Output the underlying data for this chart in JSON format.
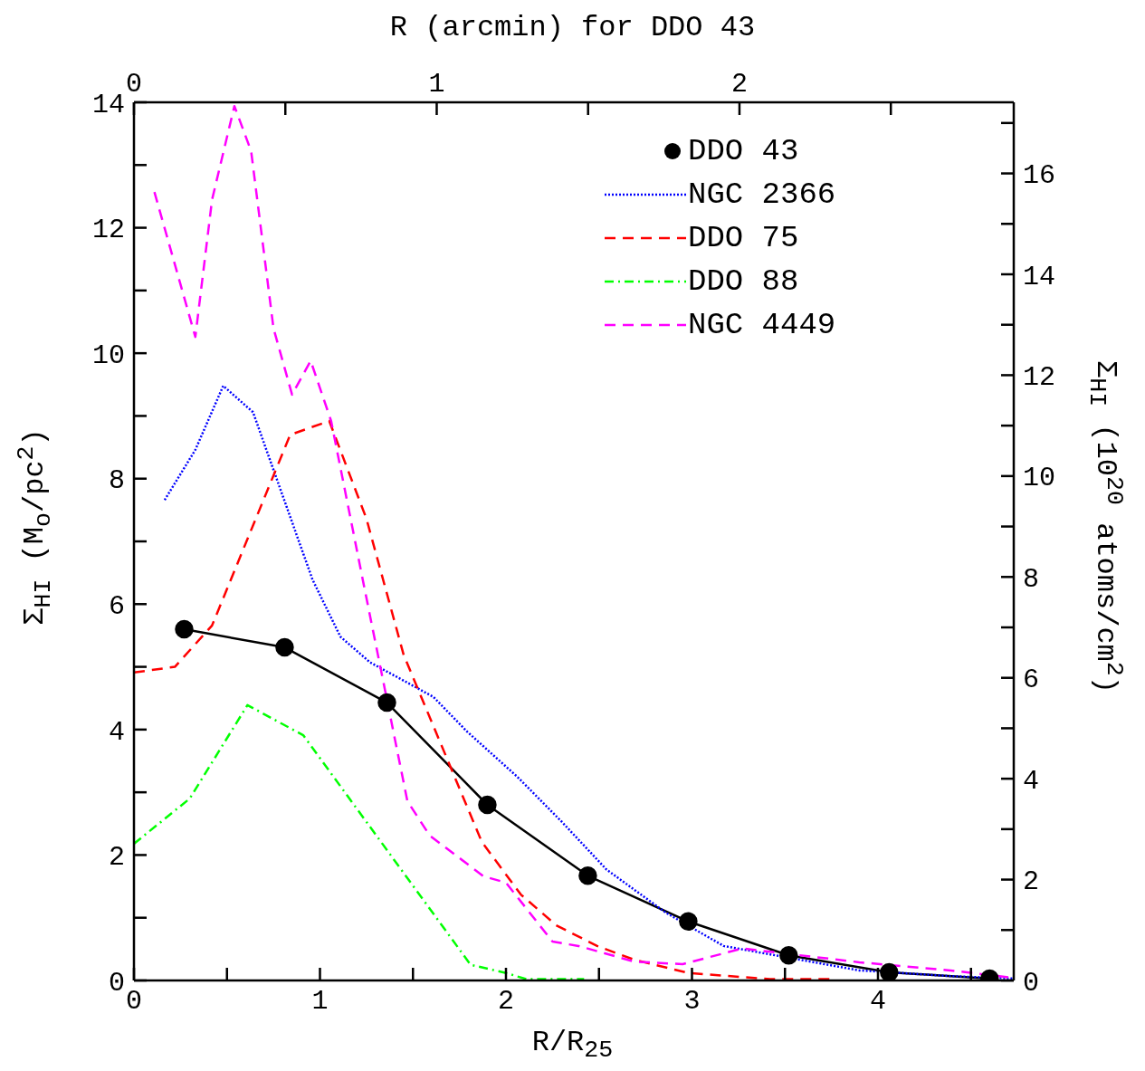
{
  "chart_data": {
    "type": "line",
    "xlabel": "R/R$_{25}$",
    "ylabel": "Σ$_{HI}$ (M$_{o}$/pc$^{2}$)",
    "y2label": "Σ$_{HI}$ (10$^{20}$ atoms/cm$^{2}$)",
    "x2label": "R (arcmin) for DDO 43",
    "xlim": [
      0,
      4.73
    ],
    "xticks": [
      0,
      {
        "value": 0.5,
        "label": null
      },
      1,
      {
        "value": 1.5,
        "label": null
      },
      2,
      {
        "value": 2.5,
        "label": null
      },
      3,
      {
        "value": 3.5,
        "label": null
      },
      4,
      {
        "value": 4.5,
        "label": null
      }
    ],
    "ylim": [
      0,
      14
    ],
    "yticks": [
      0,
      {
        "value": 1,
        "label": null
      },
      2,
      {
        "value": 3,
        "label": null
      },
      4,
      {
        "value": 5,
        "label": null
      },
      6,
      {
        "value": 7,
        "label": null
      },
      8,
      {
        "value": 9,
        "label": null
      },
      10,
      {
        "value": 11,
        "label": null
      },
      12,
      {
        "value": 13,
        "label": null
      },
      14
    ],
    "x2lim": [
      0,
      2.906
    ],
    "x2ticks": [
      0,
      {
        "value": 0.5,
        "label": null
      },
      1,
      {
        "value": 1.5,
        "label": null
      },
      2,
      {
        "value": 2.5,
        "label": null
      }
    ],
    "y2lim": [
      0,
      17.41
    ],
    "y2ticks": [
      0,
      {
        "value": 1,
        "label": null
      },
      2,
      {
        "value": 3,
        "label": null
      },
      4,
      {
        "value": 5,
        "label": null
      },
      6,
      {
        "value": 7,
        "label": null
      },
      8,
      {
        "value": 9,
        "label": null
      },
      10,
      {
        "value": 11,
        "label": null
      },
      12,
      {
        "value": 13,
        "label": null
      },
      14,
      {
        "value": 15,
        "label": null
      },
      16,
      {
        "value": 17,
        "label": null
      }
    ],
    "legend": "top right",
    "grid": false,
    "series": [
      {
        "name": "DDO 43",
        "color": "#000000",
        "marker": "circle",
        "line_style": "solid",
        "x": [
          0.27,
          0.81,
          1.36,
          1.9,
          2.44,
          2.98,
          3.52,
          4.06,
          4.6
        ],
        "values": [
          5.6,
          5.31,
          4.43,
          2.8,
          1.67,
          0.94,
          0.4,
          0.13,
          0.03
        ]
      },
      {
        "name": "NGC 2366",
        "color": "#0000ff",
        "marker": "none",
        "line_style": "dotted",
        "x": [
          0.165,
          0.33,
          0.48,
          0.64,
          0.96,
          1.11,
          1.27,
          1.45,
          1.61,
          1.79,
          2.06,
          2.3,
          2.54,
          2.86,
          3.17,
          3.9,
          4.39,
          4.73
        ],
        "values": [
          7.66,
          8.46,
          9.48,
          9.06,
          6.39,
          5.48,
          5.07,
          4.78,
          4.52,
          3.97,
          3.25,
          2.53,
          1.77,
          1.08,
          0.55,
          0.16,
          0.07,
          0.03
        ]
      },
      {
        "name": "DDO 75",
        "color": "#ff0000",
        "marker": "none",
        "line_style": "dashed",
        "x": [
          0,
          0.22,
          0.42,
          0.84,
          1.05,
          1.25,
          1.45,
          1.87,
          2.08,
          2.27,
          2.49,
          2.69,
          2.98,
          3.42,
          3.75
        ],
        "values": [
          4.91,
          5.0,
          5.66,
          8.7,
          8.92,
          7.36,
          5.19,
          2.21,
          1.37,
          0.88,
          0.55,
          0.33,
          0.12,
          0.02,
          0.02
        ]
      },
      {
        "name": "DDO 88",
        "color": "#00ff00",
        "marker": "none",
        "line_style": "dashdot",
        "x": [
          0,
          0.3,
          0.61,
          0.91,
          1.81,
          2.0,
          2.11,
          2.42
        ],
        "values": [
          2.18,
          2.9,
          4.39,
          3.91,
          0.25,
          0.12,
          0.02,
          0.02
        ]
      },
      {
        "name": "NGC 4449",
        "color": "#ff00ff",
        "marker": "none",
        "line_style": "dashed",
        "x": [
          0.11,
          0.33,
          0.42,
          0.54,
          0.63,
          0.75,
          0.85,
          0.95,
          1.06,
          1.23,
          1.47,
          1.59,
          1.88,
          2.0,
          2.25,
          2.39,
          2.69,
          2.95,
          3.27,
          3.9,
          4.39,
          4.73
        ],
        "values": [
          12.57,
          10.26,
          12.45,
          13.94,
          13.22,
          10.4,
          9.34,
          9.88,
          8.92,
          6.39,
          2.86,
          2.31,
          1.66,
          1.56,
          0.62,
          0.55,
          0.3,
          0.26,
          0.51,
          0.29,
          0.16,
          0.04
        ]
      }
    ]
  }
}
